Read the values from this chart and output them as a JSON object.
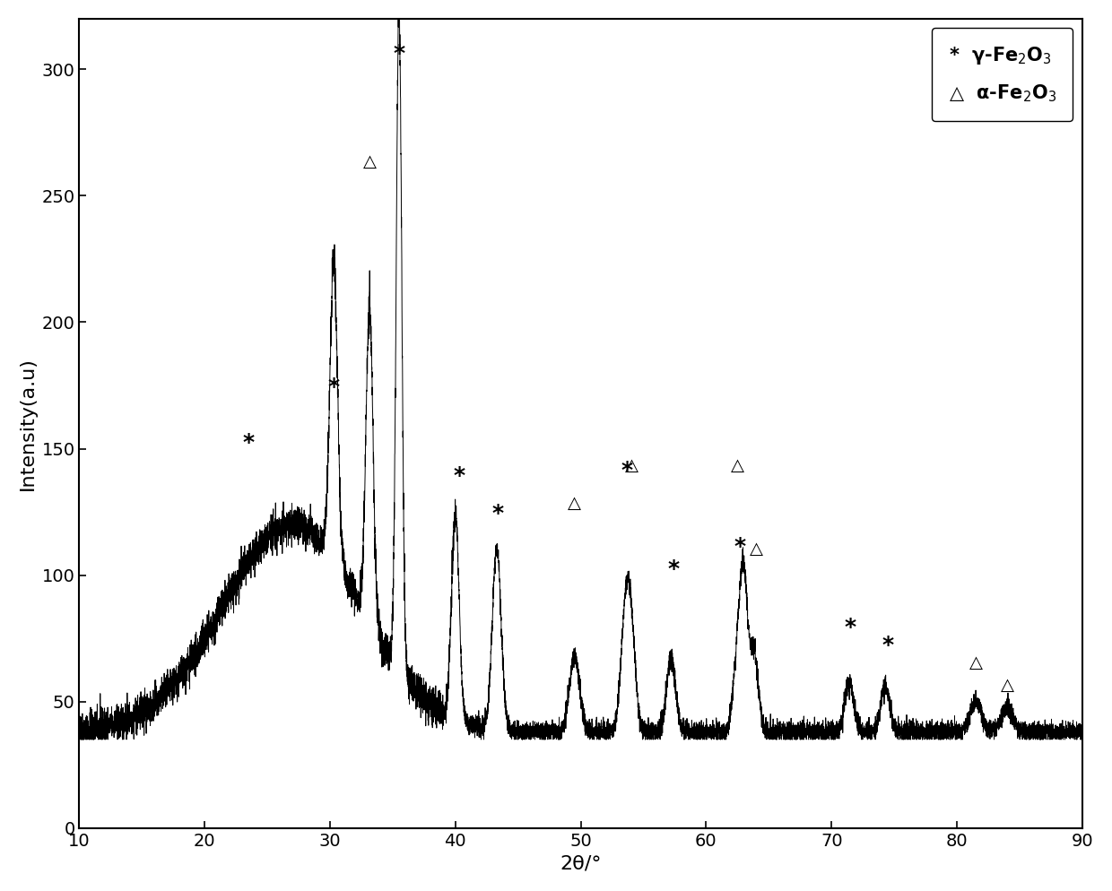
{
  "xlim": [
    10,
    90
  ],
  "ylim": [
    0,
    320
  ],
  "xlabel": "2θ/°",
  "ylabel": "Intensity(a.u)",
  "xticks": [
    10,
    20,
    30,
    40,
    50,
    60,
    70,
    80,
    90
  ],
  "yticks": [
    0,
    50,
    100,
    150,
    200,
    250,
    300
  ],
  "background_color": "#ffffff",
  "line_color": "#000000",
  "gamma_annot": [
    [
      23.5,
      148
    ],
    [
      30.3,
      170
    ],
    [
      35.5,
      302
    ],
    [
      40.3,
      135
    ],
    [
      43.4,
      120
    ],
    [
      53.7,
      137
    ],
    [
      57.4,
      98
    ],
    [
      62.7,
      107
    ],
    [
      71.5,
      75
    ],
    [
      74.5,
      68
    ]
  ],
  "alpha_annot": [
    [
      33.2,
      260
    ],
    [
      49.5,
      125
    ],
    [
      54.1,
      140
    ],
    [
      62.5,
      140
    ],
    [
      64.0,
      107
    ],
    [
      81.5,
      62
    ],
    [
      84.0,
      53
    ]
  ],
  "legend_star_label": "*  γ-Fe$_2$O$_3$",
  "legend_tri_label": "△  α-Fe$_2$O$_3$"
}
